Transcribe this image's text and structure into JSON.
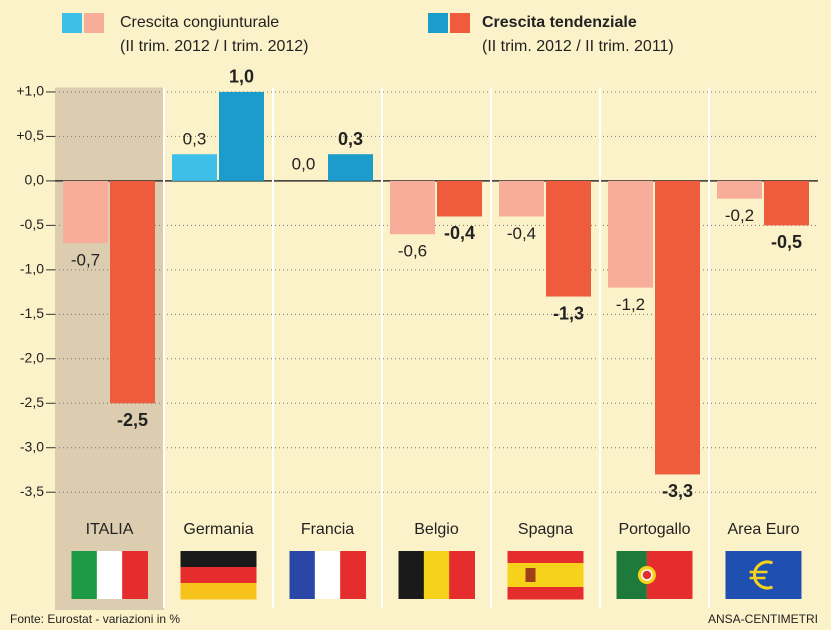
{
  "chart_data": {
    "type": "bar",
    "categories": [
      "ITALIA",
      "Germania",
      "Francia",
      "Belgio",
      "Spagna",
      "Portogallo",
      "Area Euro"
    ],
    "series": [
      {
        "name": "Crescita congiunturale",
        "note": "(II trim. 2012 / I trim. 2012)",
        "color": "#3ebfea",
        "negative_color": "#f8ad9a",
        "values": [
          -0.7,
          0.3,
          0.0,
          -0.6,
          -0.4,
          -1.2,
          -0.2
        ],
        "value_labels": [
          "-0,7",
          "0,3",
          "0,0",
          "-0,6",
          "-0,4",
          "-1,2",
          "-0,2"
        ]
      },
      {
        "name": "Crescita tendenziale",
        "note": "(II trim. 2012 / II trim. 2011)",
        "color": "#1b9ccb",
        "negative_color": "#ef5b3d",
        "values": [
          -2.5,
          1.0,
          0.3,
          -0.4,
          -1.3,
          -3.3,
          -0.5
        ],
        "value_labels": [
          "-2,5",
          "1,0",
          "0,3",
          "-0,4",
          "-1,3",
          "-3,3",
          "-0,5"
        ]
      }
    ],
    "ylim": [
      -3.7,
      1.05
    ],
    "yticks": [
      {
        "value": 1.0,
        "label": "+1,0"
      },
      {
        "value": 0.5,
        "label": "+0,5"
      },
      {
        "value": 0.0,
        "label": "0,0"
      },
      {
        "value": -0.5,
        "label": "-0,5"
      },
      {
        "value": -1.0,
        "label": "-1,0"
      },
      {
        "value": -1.5,
        "label": "-1,5"
      },
      {
        "value": -2.0,
        "label": "-2,0"
      },
      {
        "value": -2.5,
        "label": "-2,5"
      },
      {
        "value": -3.0,
        "label": "-3,0"
      },
      {
        "value": -3.5,
        "label": "-3,5"
      }
    ],
    "grid": true,
    "source": "Fonte: Eurostat - variazioni in %",
    "credit": "ANSA-CENTIMETRI"
  }
}
